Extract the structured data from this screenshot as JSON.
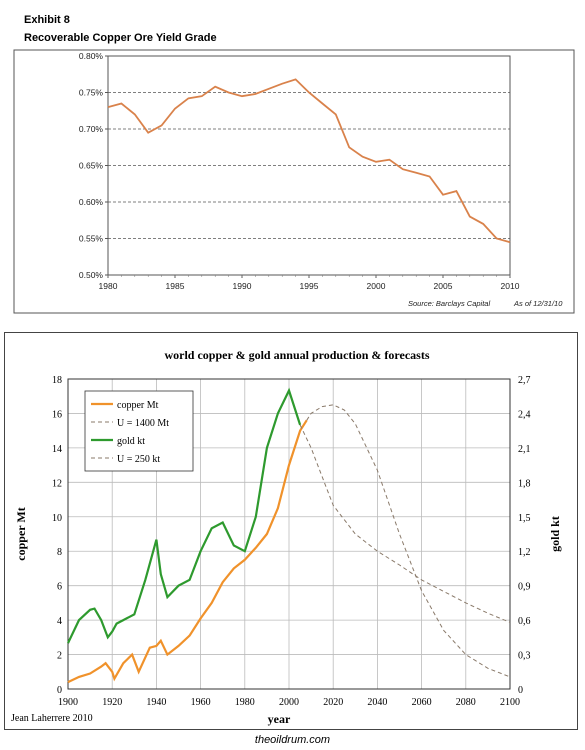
{
  "chart_data": [
    {
      "type": "line",
      "exhibit": "Exhibit 8",
      "title": "Recoverable Copper Ore Yield Grade",
      "source": "Source: Barclays Capital",
      "asof": "As of 12/31/10",
      "xlim": [
        1980,
        2010
      ],
      "ylim": [
        0.005,
        0.008
      ],
      "x_ticks": [
        1980,
        1985,
        1990,
        1995,
        2000,
        2005,
        2010
      ],
      "y_ticks": [
        0.005,
        0.0055,
        0.006,
        0.0065,
        0.007,
        0.0075,
        0.008
      ],
      "y_tick_labels": [
        "0.50%",
        "0.55%",
        "0.60%",
        "0.65%",
        "0.70%",
        "0.75%",
        "0.80%"
      ],
      "grid": "horizontal-dashed",
      "colors": {
        "line": "#d9824b"
      },
      "series": [
        {
          "x": [
            1980,
            1981,
            1982,
            1983,
            1984,
            1985,
            1986,
            1987,
            1988,
            1989,
            1990,
            1991,
            1992,
            1993,
            1994,
            1995,
            1996,
            1997,
            1998,
            1999,
            2000,
            2001,
            2002,
            2003,
            2004,
            2005,
            2006,
            2007,
            2008,
            2009,
            2010
          ],
          "values": [
            0.0073,
            0.00735,
            0.0072,
            0.00695,
            0.00705,
            0.00728,
            0.00742,
            0.00745,
            0.00758,
            0.0075,
            0.00745,
            0.00748,
            0.00755,
            0.00762,
            0.00768,
            0.0075,
            0.00735,
            0.0072,
            0.00675,
            0.00662,
            0.00655,
            0.00658,
            0.00645,
            0.0064,
            0.00635,
            0.0061,
            0.00615,
            0.0058,
            0.0057,
            0.0055,
            0.00545
          ]
        }
      ]
    },
    {
      "type": "line",
      "title": "world copper & gold annual production & forecasts",
      "xlabel": "year",
      "ylabel": "copper Mt",
      "y2label": "gold kt",
      "author": "Jean Laherrere 2010",
      "xlim": [
        1900,
        2100
      ],
      "ylim": [
        0,
        18
      ],
      "y2lim": [
        0,
        2.7
      ],
      "x_ticks": [
        1900,
        1920,
        1940,
        1960,
        1980,
        2000,
        2020,
        2040,
        2060,
        2080,
        2100
      ],
      "y_ticks": [
        0,
        2,
        4,
        6,
        8,
        10,
        12,
        14,
        16,
        18
      ],
      "y2_ticks": [
        "0",
        "0,3",
        "0,6",
        "0,9",
        "1,2",
        "1,5",
        "1,8",
        "2,1",
        "2,4",
        "2,7"
      ],
      "grid": "both",
      "legend": "top-left",
      "series": [
        {
          "name": "copper Mt",
          "axis": "left",
          "color": "#f0922b",
          "style": "solid",
          "x": [
            1900,
            1905,
            1910,
            1915,
            1917,
            1920,
            1921,
            1925,
            1929,
            1932,
            1937,
            1940,
            1942,
            1945,
            1950,
            1955,
            1960,
            1965,
            1970,
            1975,
            1980,
            1985,
            1990,
            1995,
            2000,
            2005,
            2008
          ],
          "values": [
            0.4,
            0.7,
            0.9,
            1.3,
            1.5,
            1.0,
            0.6,
            1.5,
            2.0,
            1.0,
            2.4,
            2.5,
            2.8,
            2.0,
            2.5,
            3.1,
            4.1,
            5.0,
            6.2,
            7.0,
            7.5,
            8.2,
            9.0,
            10.5,
            13.0,
            15.0,
            15.6
          ]
        },
        {
          "name": "U = 1400 Mt",
          "axis": "left",
          "color": "#8a7a6a",
          "style": "dashed",
          "x": [
            2008,
            2010,
            2015,
            2020,
            2025,
            2030,
            2040,
            2050,
            2060,
            2070,
            2080,
            2090,
            2100
          ],
          "values": [
            15.6,
            16.0,
            16.4,
            16.5,
            16.2,
            15.4,
            12.7,
            9.0,
            5.7,
            3.4,
            2.0,
            1.2,
            0.7
          ]
        },
        {
          "name": "gold kt",
          "axis": "right",
          "color": "#2e9a2e",
          "style": "solid",
          "x": [
            1900,
            1905,
            1910,
            1912,
            1915,
            1918,
            1920,
            1922,
            1925,
            1930,
            1935,
            1940,
            1942,
            1945,
            1950,
            1955,
            1960,
            1965,
            1970,
            1975,
            1980,
            1985,
            1990,
            1995,
            2000,
            2005
          ],
          "values": [
            0.4,
            0.6,
            0.69,
            0.7,
            0.6,
            0.45,
            0.5,
            0.57,
            0.6,
            0.65,
            0.95,
            1.3,
            1.0,
            0.8,
            0.9,
            0.95,
            1.2,
            1.4,
            1.45,
            1.25,
            1.2,
            1.5,
            2.1,
            2.4,
            2.6,
            2.3
          ]
        },
        {
          "name": "U = 250 kt",
          "axis": "right",
          "color": "#8a7a6a",
          "style": "dashed",
          "x": [
            2005,
            2010,
            2015,
            2020,
            2030,
            2040,
            2050,
            2060,
            2070,
            2080,
            2090,
            2100
          ],
          "values": [
            2.3,
            2.1,
            1.85,
            1.6,
            1.35,
            1.2,
            1.08,
            0.95,
            0.85,
            0.75,
            0.66,
            0.58
          ]
        }
      ]
    }
  ],
  "footer": {
    "credit": "theoildrum.com"
  }
}
